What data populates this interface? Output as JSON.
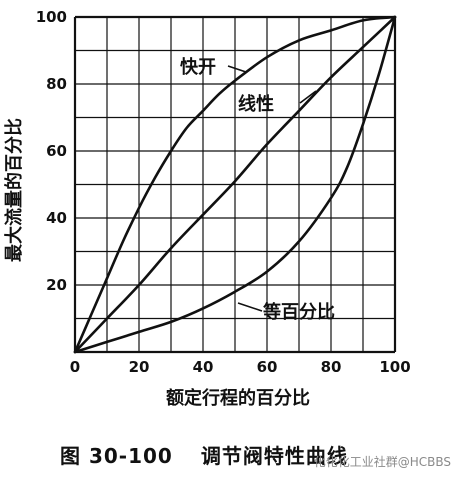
{
  "chart_data": {
    "type": "line",
    "ylabel": "最大流量的百分比",
    "xlabel": "额定行程的百分比",
    "xlim": [
      0,
      100
    ],
    "ylim": [
      0,
      100
    ],
    "x_ticks": [
      0,
      20,
      40,
      60,
      80,
      100
    ],
    "y_ticks": [
      20,
      40,
      60,
      80,
      100
    ],
    "grid": true,
    "series": [
      {
        "name": "快开",
        "x": [
          0,
          5,
          10,
          15,
          20,
          25,
          30,
          35,
          40,
          45,
          50,
          60,
          70,
          80,
          90,
          100
        ],
        "y": [
          0,
          11,
          22,
          33,
          43,
          52,
          60,
          67,
          72,
          77,
          81,
          88,
          93,
          96,
          99,
          100
        ]
      },
      {
        "name": "线性",
        "x": [
          0,
          10,
          20,
          30,
          40,
          50,
          60,
          70,
          80,
          90,
          100
        ],
        "y": [
          0,
          10,
          20,
          31,
          41,
          51,
          62,
          72,
          82,
          91,
          100
        ]
      },
      {
        "name": "等百分比",
        "x": [
          0,
          10,
          20,
          30,
          40,
          50,
          60,
          70,
          80,
          85,
          90,
          95,
          100
        ],
        "y": [
          0,
          3,
          6,
          9,
          13,
          18,
          24,
          33,
          46,
          55,
          68,
          83,
          100
        ]
      }
    ]
  },
  "caption": {
    "figure_number": "图 30-100",
    "title": "调节阀特性曲线"
  },
  "watermark": "化化化工业社群@HCBBS"
}
